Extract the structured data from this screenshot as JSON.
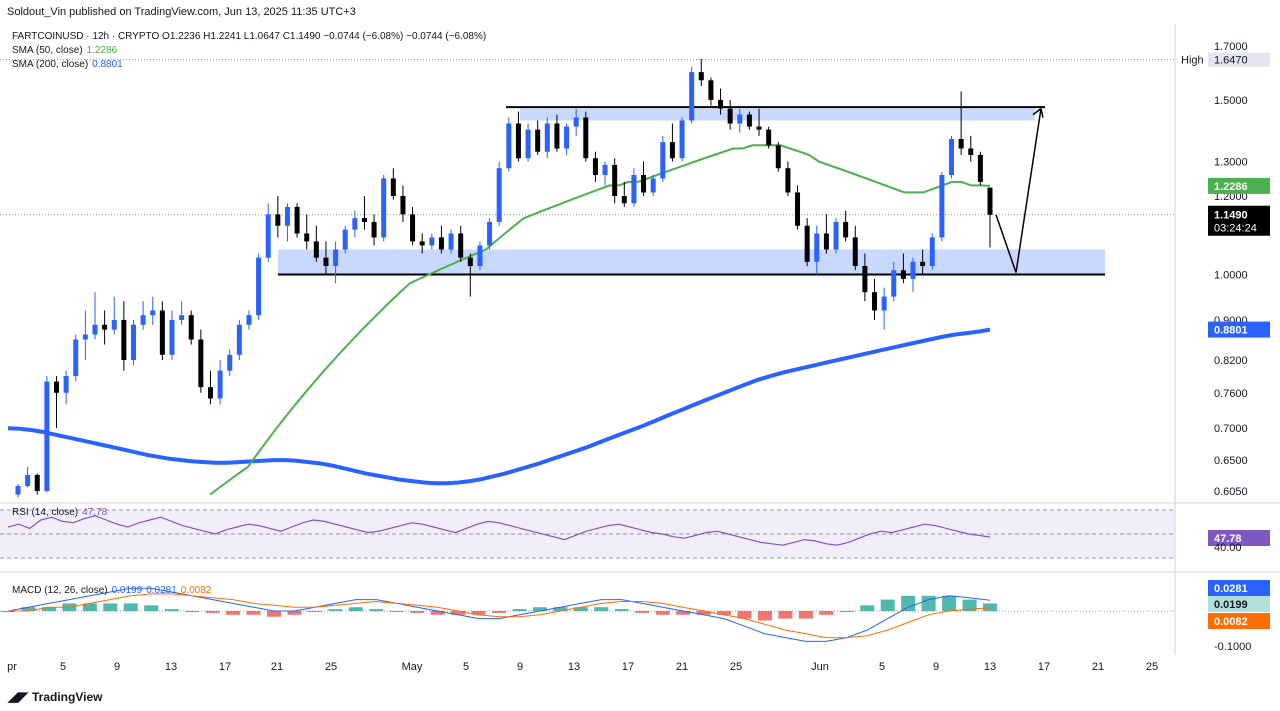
{
  "header": "Soldout_Vin published on TradingView.com, Jun 13, 2025 11:35 UTC+3",
  "legend": {
    "symbol_line": "FARTCOINUSD · 12h · CRYPTO  O1.2236  H1.2241  L1.0647  C1.1490  −0.0744 (−6.08%)  −0.0744 (−6.08%)",
    "sma50_label": "SMA (50, close)",
    "sma50_value": "1.2286",
    "sma200_label": "SMA (200, close)",
    "sma200_value": "0.8801",
    "rsi_label": "RSI (14, close)",
    "rsi_value": "47.78",
    "macd_label": "MACD (12, 26, close)",
    "macd_values": [
      "0.0199",
      "0.0281",
      "0.0082"
    ]
  },
  "price_axis": {
    "ticks": [
      "1.7000",
      "1.5000",
      "1.3000",
      "1.2000",
      "1.0000",
      "0.9000",
      "0.8200",
      "0.7600",
      "0.7000",
      "0.6500",
      "0.6050"
    ],
    "high_label": "High",
    "high_value": "1.6470",
    "sma50_box": "1.2286",
    "last_price": "1.1490",
    "countdown": "03:24:24",
    "sma200_box": "0.8801"
  },
  "rsi_axis": {
    "value_box": "47.78",
    "tick": "40.00"
  },
  "macd_axis": {
    "boxes": [
      "0.0281",
      "0.0199",
      "0.0082"
    ],
    "tick": "-0.1000"
  },
  "time_axis": [
    "pr",
    "5",
    "9",
    "13",
    "17",
    "21",
    "25",
    "May",
    "5",
    "9",
    "13",
    "17",
    "21",
    "25",
    "Jun",
    "5",
    "9",
    "13",
    "17",
    "21",
    "25"
  ],
  "footer": "TradingView",
  "colors": {
    "bull": "#2962ff",
    "bear": "#000000",
    "sma50": "#4caf50",
    "sma200": "#2962ff",
    "zone": "rgba(41,98,255,0.25)",
    "rsi": "#7e57c2",
    "macd": "#2962ff",
    "signal": "#ff6d00",
    "hist_up": "#26a69a",
    "hist_down": "#ef5350"
  },
  "chart_data": {
    "type": "candlestick",
    "symbol": "FARTCOINUSD",
    "interval": "12h",
    "price_scale": "log",
    "last_candle": {
      "open": 1.2236,
      "high": 1.2241,
      "low": 1.0647,
      "close": 1.149
    },
    "candles": [
      [
        0.6,
        0.615,
        0.596,
        0.612
      ],
      [
        0.612,
        0.64,
        0.61,
        0.628
      ],
      [
        0.628,
        0.63,
        0.6,
        0.605
      ],
      [
        0.605,
        0.79,
        0.603,
        0.78
      ],
      [
        0.78,
        0.79,
        0.7,
        0.76
      ],
      [
        0.76,
        0.8,
        0.74,
        0.79
      ],
      [
        0.79,
        0.87,
        0.78,
        0.86
      ],
      [
        0.86,
        0.92,
        0.82,
        0.87
      ],
      [
        0.87,
        0.96,
        0.86,
        0.89
      ],
      [
        0.89,
        0.92,
        0.85,
        0.88
      ],
      [
        0.88,
        0.95,
        0.87,
        0.9
      ],
      [
        0.9,
        0.94,
        0.8,
        0.82
      ],
      [
        0.82,
        0.9,
        0.81,
        0.89
      ],
      [
        0.89,
        0.94,
        0.88,
        0.91
      ],
      [
        0.91,
        0.95,
        0.89,
        0.92
      ],
      [
        0.92,
        0.94,
        0.82,
        0.83
      ],
      [
        0.83,
        0.92,
        0.82,
        0.9
      ],
      [
        0.9,
        0.94,
        0.89,
        0.91
      ],
      [
        0.91,
        0.92,
        0.85,
        0.86
      ],
      [
        0.86,
        0.88,
        0.76,
        0.77
      ],
      [
        0.77,
        0.8,
        0.74,
        0.75
      ],
      [
        0.75,
        0.82,
        0.74,
        0.8
      ],
      [
        0.8,
        0.84,
        0.79,
        0.83
      ],
      [
        0.83,
        0.9,
        0.82,
        0.89
      ],
      [
        0.89,
        0.92,
        0.88,
        0.91
      ],
      [
        0.91,
        1.05,
        0.9,
        1.04
      ],
      [
        1.04,
        1.18,
        1.03,
        1.15
      ],
      [
        1.15,
        1.2,
        1.09,
        1.12
      ],
      [
        1.12,
        1.18,
        1.08,
        1.17
      ],
      [
        1.17,
        1.18,
        1.09,
        1.1
      ],
      [
        1.1,
        1.15,
        1.06,
        1.08
      ],
      [
        1.08,
        1.12,
        1.03,
        1.04
      ],
      [
        1.04,
        1.08,
        1.0,
        1.02
      ],
      [
        1.02,
        1.08,
        0.98,
        1.06
      ],
      [
        1.06,
        1.12,
        1.05,
        1.11
      ],
      [
        1.11,
        1.16,
        1.09,
        1.14
      ],
      [
        1.14,
        1.2,
        1.11,
        1.13
      ],
      [
        1.13,
        1.15,
        1.07,
        1.09
      ],
      [
        1.09,
        1.26,
        1.08,
        1.25
      ],
      [
        1.25,
        1.28,
        1.19,
        1.2
      ],
      [
        1.2,
        1.23,
        1.13,
        1.15
      ],
      [
        1.15,
        1.17,
        1.07,
        1.08
      ],
      [
        1.08,
        1.1,
        1.05,
        1.07
      ],
      [
        1.07,
        1.1,
        1.06,
        1.09
      ],
      [
        1.09,
        1.12,
        1.05,
        1.06
      ],
      [
        1.06,
        1.11,
        1.05,
        1.1
      ],
      [
        1.1,
        1.12,
        1.03,
        1.04
      ],
      [
        1.04,
        1.05,
        0.95,
        1.02
      ],
      [
        1.02,
        1.08,
        1.01,
        1.07
      ],
      [
        1.07,
        1.14,
        1.06,
        1.13
      ],
      [
        1.13,
        1.3,
        1.12,
        1.28
      ],
      [
        1.28,
        1.44,
        1.27,
        1.42
      ],
      [
        1.42,
        1.46,
        1.3,
        1.31
      ],
      [
        1.31,
        1.42,
        1.3,
        1.4
      ],
      [
        1.4,
        1.43,
        1.32,
        1.33
      ],
      [
        1.33,
        1.44,
        1.31,
        1.42
      ],
      [
        1.42,
        1.45,
        1.33,
        1.34
      ],
      [
        1.34,
        1.42,
        1.32,
        1.41
      ],
      [
        1.41,
        1.47,
        1.38,
        1.44
      ],
      [
        1.44,
        1.46,
        1.3,
        1.31
      ],
      [
        1.31,
        1.33,
        1.24,
        1.26
      ],
      [
        1.26,
        1.3,
        1.23,
        1.29
      ],
      [
        1.29,
        1.31,
        1.18,
        1.2
      ],
      [
        1.2,
        1.24,
        1.17,
        1.18
      ],
      [
        1.18,
        1.28,
        1.17,
        1.26
      ],
      [
        1.26,
        1.3,
        1.2,
        1.21
      ],
      [
        1.21,
        1.26,
        1.2,
        1.25
      ],
      [
        1.25,
        1.38,
        1.24,
        1.36
      ],
      [
        1.36,
        1.42,
        1.3,
        1.31
      ],
      [
        1.31,
        1.44,
        1.3,
        1.43
      ],
      [
        1.43,
        1.62,
        1.42,
        1.6
      ],
      [
        1.6,
        1.65,
        1.55,
        1.57
      ],
      [
        1.57,
        1.58,
        1.48,
        1.5
      ],
      [
        1.5,
        1.54,
        1.45,
        1.47
      ],
      [
        1.47,
        1.5,
        1.4,
        1.42
      ],
      [
        1.42,
        1.47,
        1.39,
        1.45
      ],
      [
        1.45,
        1.46,
        1.4,
        1.41
      ],
      [
        1.41,
        1.47,
        1.38,
        1.4
      ],
      [
        1.4,
        1.41,
        1.34,
        1.35
      ],
      [
        1.35,
        1.36,
        1.27,
        1.28
      ],
      [
        1.28,
        1.3,
        1.2,
        1.21
      ],
      [
        1.21,
        1.23,
        1.11,
        1.12
      ],
      [
        1.12,
        1.14,
        1.02,
        1.03
      ],
      [
        1.03,
        1.12,
        1.0,
        1.1
      ],
      [
        1.1,
        1.15,
        1.05,
        1.06
      ],
      [
        1.06,
        1.14,
        1.05,
        1.13
      ],
      [
        1.13,
        1.16,
        1.08,
        1.09
      ],
      [
        1.09,
        1.12,
        1.01,
        1.02
      ],
      [
        1.02,
        1.05,
        0.94,
        0.96
      ],
      [
        0.96,
        0.99,
        0.9,
        0.92
      ],
      [
        0.92,
        0.97,
        0.88,
        0.95
      ],
      [
        0.95,
        1.03,
        0.94,
        1.01
      ],
      [
        1.01,
        1.05,
        0.98,
        0.99
      ],
      [
        0.99,
        1.04,
        0.96,
        1.03
      ],
      [
        1.03,
        1.06,
        1.0,
        1.02
      ],
      [
        1.02,
        1.1,
        1.01,
        1.09
      ],
      [
        1.09,
        1.27,
        1.08,
        1.26
      ],
      [
        1.26,
        1.38,
        1.25,
        1.37
      ],
      [
        1.37,
        1.53,
        1.32,
        1.34
      ],
      [
        1.34,
        1.38,
        1.3,
        1.32
      ],
      [
        1.32,
        1.33,
        1.23,
        1.24
      ],
      [
        1.2236,
        1.2241,
        1.0647,
        1.149
      ]
    ],
    "sma50": [
      null,
      null,
      null,
      null,
      null,
      null,
      null,
      null,
      null,
      null,
      null,
      null,
      null,
      null,
      null,
      null,
      null,
      0.6,
      0.61,
      0.62,
      0.63,
      0.64,
      0.66,
      0.68,
      0.7,
      0.72,
      0.74,
      0.76,
      0.78,
      0.8,
      0.82,
      0.84,
      0.86,
      0.88,
      0.9,
      0.92,
      0.94,
      0.96,
      0.98,
      0.99,
      1.0,
      1.01,
      1.02,
      1.03,
      1.04,
      1.05,
      1.06,
      1.08,
      1.1,
      1.12,
      1.14,
      1.15,
      1.16,
      1.17,
      1.18,
      1.19,
      1.2,
      1.21,
      1.22,
      1.23,
      1.23,
      1.24,
      1.24,
      1.25,
      1.26,
      1.27,
      1.28,
      1.29,
      1.3,
      1.31,
      1.32,
      1.33,
      1.34,
      1.34,
      1.35,
      1.35,
      1.35,
      1.35,
      1.34,
      1.33,
      1.32,
      1.3,
      1.29,
      1.28,
      1.27,
      1.26,
      1.25,
      1.24,
      1.23,
      1.22,
      1.21,
      1.21,
      1.21,
      1.22,
      1.23,
      1.24,
      1.24,
      1.23,
      1.23,
      1.2286
    ],
    "sma200": [
      0.7,
      0.699,
      0.697,
      0.694,
      0.69,
      0.686,
      0.682,
      0.678,
      0.674,
      0.67,
      0.666,
      0.662,
      0.658,
      0.655,
      0.652,
      0.65,
      0.648,
      0.647,
      0.646,
      0.646,
      0.647,
      0.648,
      0.649,
      0.65,
      0.65,
      0.649,
      0.647,
      0.645,
      0.642,
      0.638,
      0.634,
      0.63,
      0.627,
      0.624,
      0.621,
      0.619,
      0.617,
      0.616,
      0.616,
      0.617,
      0.619,
      0.622,
      0.626,
      0.63,
      0.635,
      0.64,
      0.645,
      0.651,
      0.657,
      0.663,
      0.669,
      0.676,
      0.683,
      0.69,
      0.697,
      0.704,
      0.712,
      0.72,
      0.728,
      0.736,
      0.744,
      0.752,
      0.76,
      0.768,
      0.776,
      0.784,
      0.79,
      0.796,
      0.801,
      0.806,
      0.811,
      0.816,
      0.821,
      0.826,
      0.831,
      0.836,
      0.841,
      0.846,
      0.851,
      0.856,
      0.861,
      0.866,
      0.87,
      0.873,
      0.876,
      0.8801
    ],
    "support_zone": [
      1.0,
      1.06
    ],
    "resistance_zone": [
      1.43,
      1.47
    ],
    "projection": [
      1.149,
      1.0,
      1.47
    ],
    "rsi": [
      55,
      57,
      54,
      60,
      62,
      59,
      58,
      61,
      63,
      60,
      57,
      55,
      58,
      60,
      62,
      59,
      56,
      54,
      52,
      50,
      53,
      55,
      57,
      56,
      54,
      52,
      55,
      58,
      60,
      59,
      57,
      55,
      53,
      51,
      52,
      54,
      56,
      58,
      57,
      55,
      53,
      51,
      54,
      57,
      59,
      58,
      56,
      54,
      52,
      50,
      48,
      46,
      49,
      52,
      54,
      56,
      57,
      55,
      53,
      51,
      50,
      48,
      47,
      49,
      51,
      52,
      50,
      48,
      46,
      44,
      43,
      42,
      44,
      46,
      45,
      43,
      42,
      44,
      47,
      50,
      52,
      51,
      53,
      55,
      57,
      56,
      54,
      52,
      50,
      49,
      47.78
    ],
    "macd_line": [
      0.0,
      0.01,
      0.02,
      0.03,
      0.04,
      0.05,
      0.06,
      0.06,
      0.05,
      0.04,
      0.03,
      0.02,
      0.01,
      0.0,
      0.0,
      0.01,
      0.02,
      0.03,
      0.03,
      0.02,
      0.01,
      0.0,
      -0.01,
      -0.02,
      -0.02,
      -0.01,
      0.0,
      0.01,
      0.02,
      0.03,
      0.03,
      0.02,
      0.01,
      0.0,
      -0.01,
      -0.02,
      -0.04,
      -0.06,
      -0.07,
      -0.08,
      -0.08,
      -0.07,
      -0.05,
      -0.02,
      0.01,
      0.03,
      0.04,
      0.035,
      0.0281
    ],
    "macd_signal": [
      0.0,
      0.0,
      0.01,
      0.01,
      0.02,
      0.03,
      0.04,
      0.045,
      0.045,
      0.04,
      0.035,
      0.03,
      0.02,
      0.015,
      0.01,
      0.01,
      0.015,
      0.02,
      0.025,
      0.02,
      0.015,
      0.01,
      0.0,
      -0.01,
      -0.015,
      -0.015,
      -0.01,
      0.0,
      0.01,
      0.02,
      0.025,
      0.025,
      0.02,
      0.01,
      0.0,
      -0.01,
      -0.02,
      -0.035,
      -0.05,
      -0.06,
      -0.07,
      -0.07,
      -0.065,
      -0.05,
      -0.03,
      -0.01,
      0.0,
      0.005,
      0.0082
    ],
    "macd_hist": [
      0.0,
      0.01,
      0.01,
      0.02,
      0.02,
      0.02,
      0.02,
      0.015,
      0.005,
      0.0,
      -0.005,
      -0.01,
      -0.01,
      -0.015,
      -0.01,
      0.0,
      0.005,
      0.01,
      0.005,
      0.0,
      -0.005,
      -0.01,
      -0.01,
      -0.01,
      -0.005,
      0.005,
      0.01,
      0.01,
      0.01,
      0.01,
      0.005,
      -0.005,
      -0.01,
      -0.01,
      -0.01,
      -0.01,
      -0.02,
      -0.025,
      -0.02,
      -0.02,
      -0.01,
      0.0,
      0.015,
      0.03,
      0.04,
      0.04,
      0.04,
      0.03,
      0.0199
    ]
  }
}
